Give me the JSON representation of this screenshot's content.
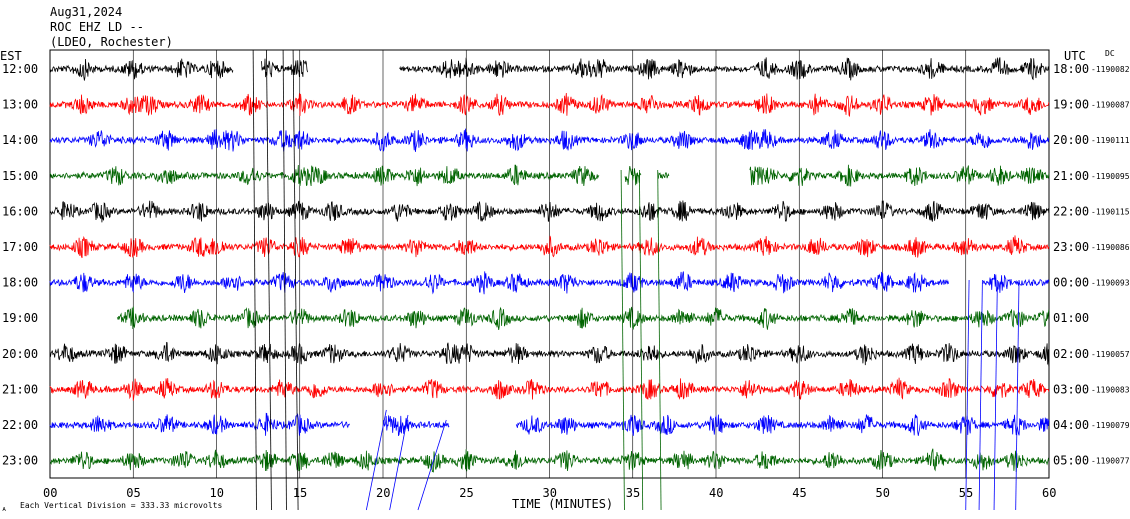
{
  "header": {
    "date": "Aug31,2024",
    "station": "ROC EHZ LD --",
    "network": "(LDEO, Rochester)"
  },
  "left_axis_label": "EST",
  "right_axis_label": "UTC",
  "dc_label": "DC",
  "footer": {
    "scale_note": "Each Vertical Division =  333.33 microvolts",
    "corner_mark": "ᴀ"
  },
  "chart_data": {
    "type": "line",
    "title": "",
    "xlabel": "TIME (MINUTES)",
    "ylabel": "",
    "xlim": [
      0,
      60
    ],
    "x_ticks": [
      "00",
      "05",
      "10",
      "15",
      "20",
      "25",
      "30",
      "35",
      "40",
      "45",
      "50",
      "55",
      "60"
    ],
    "colors": {
      "black": "#000000",
      "red": "#ff0000",
      "blue": "#0000ff",
      "green": "#006400",
      "grid": "#000000"
    },
    "series": [
      {
        "est": "12:00",
        "utc": "18:00",
        "dc": "-1190082",
        "color": "#000000",
        "gaps": [
          [
            11,
            12.7
          ],
          [
            15.5,
            21
          ]
        ],
        "bursts": [
          2,
          5,
          8,
          10,
          13,
          15,
          18,
          24,
          25,
          27,
          32,
          33,
          36,
          38,
          43,
          45,
          48,
          53,
          57,
          59
        ]
      },
      {
        "est": "13:00",
        "utc": "19:00",
        "dc": "-1190087",
        "color": "#ff0000",
        "gaps": [],
        "bursts": [
          2,
          5,
          6,
          9,
          12,
          15,
          18,
          22,
          25,
          27,
          31,
          33,
          36,
          39,
          43,
          46,
          48,
          50,
          53,
          56,
          59
        ]
      },
      {
        "est": "14:00",
        "utc": "20:00",
        "dc": "-1190111",
        "color": "#0000ff",
        "gaps": [],
        "bursts": [
          3,
          7,
          10,
          11,
          14,
          15,
          20,
          22,
          25,
          28,
          31,
          35,
          38,
          42,
          43,
          47,
          50,
          53,
          56,
          59
        ]
      },
      {
        "est": "15:00",
        "utc": "21:00",
        "dc": "-1190095",
        "color": "#006400",
        "gaps": [
          [
            33,
            34.5
          ],
          [
            35.5,
            36.5
          ],
          [
            37.2,
            42
          ]
        ],
        "bursts": [
          4,
          7,
          12,
          15,
          16,
          20,
          22,
          24,
          28,
          32,
          35,
          42,
          43,
          45,
          48,
          52,
          55,
          57,
          59
        ]
      },
      {
        "est": "16:00",
        "utc": "22:00",
        "dc": "-1190115",
        "color": "#000000",
        "gaps": [],
        "bursts": [
          1,
          3,
          6,
          9,
          13,
          15,
          17,
          21,
          24,
          26,
          30,
          33,
          36,
          38,
          41,
          44,
          47,
          50,
          53,
          56,
          59
        ]
      },
      {
        "est": "17:00",
        "utc": "23:00",
        "dc": "-1190086",
        "color": "#ff0000",
        "gaps": [],
        "bursts": [
          2,
          5,
          9,
          10,
          13,
          15,
          18,
          22,
          25,
          30,
          33,
          36,
          39,
          43,
          46,
          49,
          52,
          55,
          58
        ]
      },
      {
        "est": "18:00",
        "utc": "00:00",
        "dc": "-1190093",
        "color": "#0000ff",
        "gaps": [
          [
            54,
            56
          ]
        ],
        "bursts": [
          2,
          5,
          8,
          11,
          14,
          17,
          20,
          23,
          26,
          28,
          31,
          35,
          38,
          41,
          44,
          47,
          50,
          52,
          57
        ]
      },
      {
        "est": "19:00",
        "utc": "01:00",
        "dc": "",
        "color": "#006400",
        "gaps": [
          [
            0,
            4
          ]
        ],
        "bursts": [
          5,
          9,
          12,
          15,
          18,
          22,
          25,
          27,
          32,
          35,
          38,
          40,
          43,
          48,
          52,
          56,
          58,
          60
        ]
      },
      {
        "est": "20:00",
        "utc": "02:00",
        "dc": "-1190057",
        "color": "#000000",
        "gaps": [],
        "bursts": [
          1,
          4,
          7,
          10,
          13,
          15,
          17,
          21,
          24,
          25,
          28,
          33,
          36,
          39,
          42,
          45,
          49,
          52,
          54,
          58,
          60
        ]
      },
      {
        "est": "21:00",
        "utc": "03:00",
        "dc": "-1190083",
        "color": "#ff0000",
        "gaps": [],
        "bursts": [
          2,
          5,
          7,
          10,
          14,
          16,
          20,
          23,
          27,
          29,
          33,
          36,
          38,
          42,
          45,
          48,
          51,
          54,
          57,
          59
        ]
      },
      {
        "est": "22:00",
        "utc": "04:00",
        "dc": "-1190079",
        "color": "#0000ff",
        "gaps": [
          [
            18,
            20
          ],
          [
            24,
            28
          ]
        ],
        "bursts": [
          3,
          7,
          10,
          13,
          15,
          20,
          21,
          29,
          31,
          35,
          37,
          40,
          43,
          47,
          49,
          52,
          55,
          58,
          60
        ]
      },
      {
        "est": "23:00",
        "utc": "05:00",
        "dc": "-1190077",
        "color": "#006400",
        "gaps": [],
        "bursts": [
          2,
          5,
          8,
          10,
          13,
          15,
          17,
          19,
          23,
          25,
          28,
          31,
          35,
          38,
          40,
          43,
          47,
          50,
          53,
          56,
          58
        ]
      }
    ]
  }
}
